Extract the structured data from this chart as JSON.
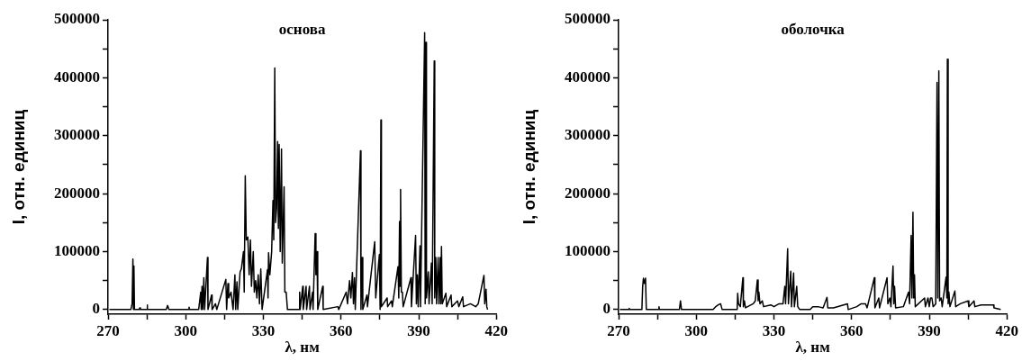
{
  "chart_data": [
    {
      "type": "line",
      "title": "основа",
      "xlabel": "λ, нм",
      "ylabel": "I, отн. единиц",
      "xlim": [
        270,
        420
      ],
      "ylim": [
        -8000,
        500000
      ],
      "xticks": [
        270,
        {
          "value": 285,
          "label": null
        },
        300,
        {
          "value": 315,
          "label": null
        },
        330,
        {
          "value": 345,
          "label": null
        },
        360,
        {
          "value": 375,
          "label": null
        },
        390,
        {
          "value": 405,
          "label": null
        },
        420
      ],
      "yticks": [
        0,
        {
          "value": 50000,
          "label": null
        },
        100000,
        {
          "value": 150000,
          "label": null
        },
        200000,
        {
          "value": 250000,
          "label": null
        },
        300000,
        {
          "value": 350000,
          "label": null
        },
        400000,
        {
          "value": 450000,
          "label": null
        },
        500000
      ],
      "series": [
        {
          "color": "#000000",
          "x": [
            270.5,
            278.8,
            279.3,
            279.6,
            279.8,
            280.0,
            280.2,
            282,
            282.3,
            282.5,
            285,
            285.1,
            285.3,
            292.5,
            293,
            293.5,
            301,
            301.3,
            301.5,
            305,
            305.8,
            306,
            306.3,
            306.6,
            307,
            307.3,
            308.4,
            308.6,
            310,
            310.2,
            311.5,
            312,
            315.5,
            315.8,
            316.3,
            316.6,
            317.5,
            318.3,
            319,
            319.3,
            319.8,
            320.1,
            321,
            321.5,
            322.3,
            322.6,
            323,
            323.4,
            324,
            324.5,
            325,
            325.4,
            326.1,
            326.5,
            327,
            327.5,
            328,
            328.5,
            329,
            329.5,
            331.6,
            331.8,
            332,
            332.5,
            333.2,
            333.7,
            334,
            334.4,
            334.7,
            335.1,
            335.5,
            335.8,
            336.1,
            336.5,
            337,
            337.3,
            338,
            338.3,
            338.8,
            339.3,
            343.8,
            344,
            344.2,
            345.2,
            345.4,
            346.5,
            346.7,
            347.8,
            348,
            349,
            349.2,
            350,
            350.3,
            350.7,
            351,
            352.9,
            353.1,
            358.8,
            359.1,
            362,
            362.5,
            363.3,
            363.8,
            364.4,
            364.8,
            365.2,
            365.5,
            367.5,
            367.7,
            368.2,
            368.4,
            370,
            370.2,
            373,
            373.4,
            374.8,
            375.1,
            375.4,
            375.6,
            377.8,
            378,
            379.5,
            379.8,
            382,
            382.3,
            382.6,
            382.8,
            383,
            383.3,
            383.7,
            384,
            387,
            387.2,
            388.8,
            389.1,
            389.5,
            389.8,
            390.5,
            390.7,
            392.3,
            392.5,
            392.8,
            393,
            393.7,
            394,
            394.9,
            395.2,
            396,
            396.2,
            396.6,
            396.9,
            397.5,
            397.8,
            398.3,
            398.5,
            398.8,
            399.1,
            400.5,
            400.8,
            402.5,
            402.8,
            405,
            405.5,
            407,
            407.3,
            410,
            412,
            413,
            415.2,
            415.5,
            416,
            416.3,
            416.6
          ],
          "values": [
            0,
            0,
            10000,
            87000,
            0,
            75000,
            0,
            0,
            3000,
            0,
            0,
            8000,
            0,
            0,
            7000,
            0,
            0,
            4000,
            0,
            0,
            30000,
            0,
            40000,
            0,
            55000,
            0,
            90000,
            0,
            25000,
            0,
            10000,
            0,
            52000,
            0,
            45000,
            20000,
            30000,
            0,
            60000,
            0,
            48000,
            0,
            65000,
            70000,
            100000,
            30000,
            231000,
            120000,
            125000,
            60000,
            120000,
            40000,
            100000,
            30000,
            50000,
            20000,
            60000,
            10000,
            70000,
            0,
            69000,
            20000,
            98000,
            60000,
            100000,
            188000,
            120000,
            417000,
            150000,
            175000,
            290000,
            140000,
            285000,
            100000,
            277000,
            80000,
            212000,
            30000,
            30000,
            0,
            0,
            30000,
            0,
            40000,
            0,
            40000,
            0,
            40000,
            0,
            30000,
            0,
            131000,
            60000,
            100000,
            0,
            40000,
            0,
            5000,
            0,
            30000,
            10000,
            50000,
            20000,
            64000,
            10000,
            55000,
            0,
            274000,
            0,
            90000,
            0,
            25000,
            5000,
            117000,
            20000,
            95000,
            0,
            327000,
            5000,
            20000,
            5000,
            15000,
            5000,
            74000,
            20000,
            152000,
            40000,
            207000,
            30000,
            30000,
            5000,
            55000,
            5000,
            128000,
            10000,
            60000,
            5000,
            110000,
            5000,
            478000,
            10000,
            461000,
            20000,
            65000,
            10000,
            80000,
            10000,
            429000,
            20000,
            90000,
            10000,
            90000,
            10000,
            90000,
            10000,
            109000,
            10000,
            28000,
            5000,
            25000,
            5000,
            15000,
            5000,
            22000,
            5000,
            10000,
            5000,
            10000,
            59000,
            10000,
            35000,
            5000,
            0
          ]
        }
      ]
    },
    {
      "type": "line",
      "title": "оболочка",
      "xlabel": "λ, нм",
      "ylabel": "I, отн. единиц",
      "xlim": [
        270,
        420
      ],
      "ylim": [
        -8000,
        500000
      ],
      "xticks": [
        270,
        {
          "value": 285,
          "label": null
        },
        300,
        {
          "value": 315,
          "label": null
        },
        330,
        {
          "value": 345,
          "label": null
        },
        360,
        {
          "value": 375,
          "label": null
        },
        390,
        {
          "value": 405,
          "label": null
        },
        420
      ],
      "yticks": [
        0,
        {
          "value": 50000,
          "label": null
        },
        100000,
        {
          "value": 150000,
          "label": null
        },
        200000,
        {
          "value": 250000,
          "label": null
        },
        300000,
        {
          "value": 350000,
          "label": null
        },
        400000,
        {
          "value": 450000,
          "label": null
        },
        500000
      ],
      "series": [
        {
          "color": "#000000",
          "x": [
            270.5,
            274,
            274.1,
            274.3,
            279,
            279.3,
            279.6,
            280,
            280.4,
            280.7,
            285.5,
            285.6,
            285.8,
            293.5,
            293.9,
            294.3,
            306.5,
            307.5,
            308.5,
            309.4,
            310,
            315.8,
            316,
            316.3,
            317,
            318,
            318.2,
            318.6,
            319,
            322,
            322.8,
            323.6,
            323.9,
            324.2,
            324.6,
            325.5,
            326,
            328.8,
            330,
            332,
            333.5,
            334.2,
            334.5,
            335.3,
            335.6,
            336.5,
            336.8,
            337.6,
            337.9,
            338.8,
            339.2,
            340,
            344,
            345,
            347,
            349,
            350.5,
            350.8,
            353,
            358.4,
            358.7,
            362,
            363.7,
            365.4,
            366,
            368.8,
            369,
            370.5,
            370.8,
            373.7,
            374,
            374.8,
            375.2,
            376,
            376.3,
            376.6,
            377,
            380,
            382,
            382.4,
            383,
            383.3,
            383.7,
            384,
            384.3,
            384.6,
            388.2,
            388.5,
            389.5,
            390,
            390.5,
            391,
            391.5,
            392.5,
            393,
            393.3,
            393.7,
            394,
            394.6,
            395,
            396.5,
            396.8,
            397,
            397.3,
            397.6,
            398,
            399.9,
            400.2,
            402,
            405,
            405.3,
            407.3,
            407.6,
            410,
            414.8,
            415,
            417.6
          ],
          "values": [
            0,
            0,
            2000,
            0,
            0,
            40000,
            54000,
            45000,
            54000,
            0,
            0,
            5000,
            0,
            0,
            15000,
            0,
            0,
            5000,
            8000,
            10000,
            0,
            0,
            28000,
            10000,
            5000,
            55000,
            5000,
            15000,
            3000,
            10000,
            15000,
            51000,
            15000,
            30000,
            10000,
            15000,
            5000,
            8000,
            5000,
            10000,
            10000,
            40000,
            10000,
            105000,
            10000,
            66000,
            5000,
            63000,
            5000,
            40000,
            5000,
            0,
            0,
            5000,
            5000,
            3000,
            21000,
            3000,
            3000,
            10000,
            0,
            5000,
            10000,
            10000,
            3000,
            55000,
            3000,
            20000,
            3000,
            55000,
            10000,
            20000,
            5000,
            75000,
            10000,
            40000,
            3000,
            5000,
            30000,
            10000,
            128000,
            20000,
            168000,
            20000,
            60000,
            5000,
            20000,
            5000,
            20000,
            5000,
            20000,
            20000,
            5000,
            10000,
            392000,
            20000,
            412000,
            15000,
            20000,
            5000,
            56000,
            20000,
            432000,
            10000,
            30000,
            5000,
            32000,
            5000,
            10000,
            15000,
            5000,
            15000,
            5000,
            8000,
            8000,
            3000,
            0
          ]
        }
      ]
    }
  ]
}
